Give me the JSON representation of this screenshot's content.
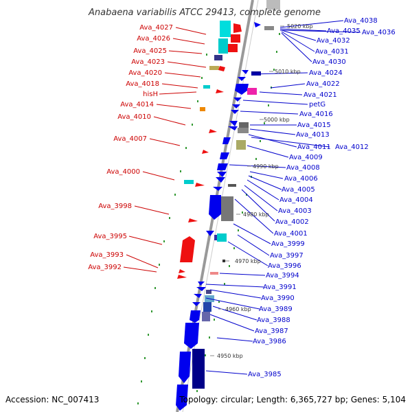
{
  "title": "Anabaena variabilis ATCC 29413, complete genome",
  "footer": {
    "accession": "Accession: NC_007413",
    "topology": "Topology: circular; Length: 6,365,727 bp; Genes: 5,104"
  },
  "colors": {
    "forward_label": "#cc0000",
    "reverse_label": "#0000cc",
    "backbone": "#999999",
    "tick_dot": "#339933"
  },
  "ticks": [
    "5020 kbp",
    "5010 kbp",
    "5000 kbp",
    "4990 kbp",
    "4980 kbp",
    "4970 kbp",
    "4960 kbp",
    "4950 kbp"
  ],
  "left_labels": [
    "Ava_4027",
    "Ava_4026",
    "Ava_4025",
    "Ava_4023",
    "Ava_4020",
    "Ava_4018",
    "hisH",
    "Ava_4014",
    "Ava_4010",
    "Ava_4007",
    "Ava_4000",
    "Ava_3998",
    "Ava_3995",
    "Ava_3993",
    "Ava_3992"
  ],
  "right_labels": [
    "Ava_4038",
    "Ava_4035",
    "Ava_4036",
    "Ava_4032",
    "Ava_4031",
    "Ava_4030",
    "Ava_4024",
    "Ava_4022",
    "Ava_4021",
    "petG",
    "Ava_4016",
    "Ava_4015",
    "Ava_4013",
    "Ava_4011",
    "Ava_4012",
    "Ava_4009",
    "Ava_4008",
    "Ava_4006",
    "Ava_4005",
    "Ava_4004",
    "Ava_4003",
    "Ava_4002",
    "Ava_4001",
    "Ava_3999",
    "Ava_3997",
    "Ava_3996",
    "Ava_3994",
    "Ava_3991",
    "Ava_3990",
    "Ava_3989",
    "Ava_3988",
    "Ava_3987",
    "Ava_3986",
    "Ava_3985"
  ]
}
